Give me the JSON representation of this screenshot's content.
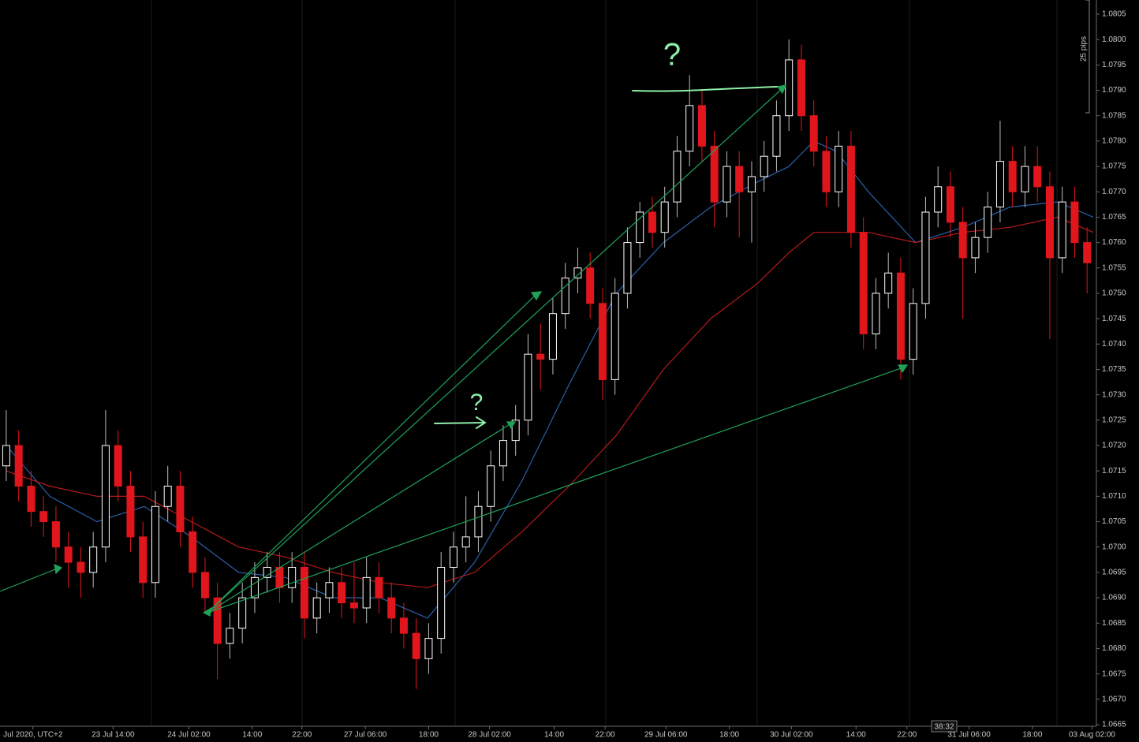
{
  "chart_data": {
    "type": "candlestick",
    "up_color": "#ffffff",
    "down_color": "#e0161c",
    "ylim": [
      1.0665,
      1.0805
    ],
    "yticks": [
      1.0665,
      {
        "value": 1.067,
        "label": "1.0670"
      },
      1.0675,
      {
        "value": 1.068,
        "label": "1.0680"
      },
      1.0685,
      {
        "value": 1.069,
        "label": "1.0690"
      },
      1.0695,
      {
        "value": 1.07,
        "label": "1.0700"
      },
      1.0705,
      {
        "value": 1.071,
        "label": "1.0710"
      },
      1.0715,
      {
        "value": 1.072,
        "label": "1.0720"
      },
      1.0725,
      {
        "value": 1.073,
        "label": "1.0730"
      },
      1.0735,
      {
        "value": 1.074,
        "label": "1.0740"
      },
      1.0745,
      {
        "value": 1.075,
        "label": "1.0750"
      },
      1.0755,
      {
        "value": 1.076,
        "label": "1.0760"
      },
      1.0765,
      {
        "value": 1.077,
        "label": "1.0770"
      },
      1.0775,
      {
        "value": 1.078,
        "label": "1.0780"
      },
      1.0785,
      {
        "value": 1.079,
        "label": "1.0790"
      },
      1.0795,
      {
        "value": 1.08,
        "label": "1.0800"
      },
      1.0805
    ],
    "xlim": [
      -0.25,
      87.75
    ],
    "xticks": [
      {
        "value": 2.15,
        "label": "Jul 2020, UTC+2"
      },
      {
        "value": 8.6,
        "label": "23 Jul 14:00"
      },
      {
        "value": 14.7,
        "label": "24 Jul 02:00"
      },
      {
        "value": 19.8,
        "label": "14:00"
      },
      {
        "value": 23.8,
        "label": "22:00"
      },
      {
        "value": 28.9,
        "label": "27 Jul 06:00"
      },
      {
        "value": 34,
        "label": "18:00"
      },
      {
        "value": 38.9,
        "label": "28 Jul 02:00"
      },
      {
        "value": 44.1,
        "label": "14:00"
      },
      {
        "value": 48.2,
        "label": "22:00"
      },
      {
        "value": 53.1,
        "label": "29 Jul 06:00"
      },
      {
        "value": 58.2,
        "label": "18:00"
      },
      {
        "value": 63.2,
        "label": "30 Jul 02:00"
      },
      {
        "value": 68.4,
        "label": "14:00"
      },
      {
        "value": 72.5,
        "label": "22:00"
      },
      {
        "value": 77.5,
        "label": "31 Jul 06:00"
      },
      {
        "value": 82.6,
        "label": "18:00"
      },
      {
        "value": 87.4,
        "label": "03 Aug 02:00"
      }
    ],
    "ohlc": [
      [
        1.0716,
        1.0727,
        1.0713,
        1.072
      ],
      [
        1.072,
        1.0723,
        1.0709,
        1.0712
      ],
      [
        1.0712,
        1.0715,
        1.0704,
        1.0707
      ],
      [
        1.0707,
        1.071,
        1.0702,
        1.0705
      ],
      [
        1.0705,
        1.0708,
        1.0697,
        1.07
      ],
      [
        1.07,
        1.0703,
        1.0692,
        1.0697
      ],
      [
        1.0697,
        1.07,
        1.069,
        1.0695
      ],
      [
        1.0695,
        1.0703,
        1.0692,
        1.07
      ],
      [
        1.07,
        1.0727,
        1.0697,
        1.072
      ],
      [
        1.072,
        1.0723,
        1.0709,
        1.0712
      ],
      [
        1.0712,
        1.0715,
        1.0699,
        1.0702
      ],
      [
        1.0702,
        1.0705,
        1.069,
        1.0693
      ],
      [
        1.0693,
        1.0711,
        1.069,
        1.0708
      ],
      [
        1.0708,
        1.0716,
        1.0705,
        1.0712
      ],
      [
        1.0712,
        1.0715,
        1.07,
        1.0703
      ],
      [
        1.0703,
        1.0706,
        1.0692,
        1.0695
      ],
      [
        1.0695,
        1.0698,
        1.0687,
        1.069
      ],
      [
        1.069,
        1.0693,
        1.0674,
        1.0681
      ],
      [
        1.0681,
        1.0687,
        1.0678,
        1.0684
      ],
      [
        1.0684,
        1.0693,
        1.0681,
        1.069
      ],
      [
        1.069,
        1.0697,
        1.0687,
        1.0694
      ],
      [
        1.0694,
        1.0699,
        1.0691,
        1.0696
      ],
      [
        1.0696,
        1.0699,
        1.0689,
        1.0692
      ],
      [
        1.0692,
        1.0699,
        1.0689,
        1.0696
      ],
      [
        1.0696,
        1.0699,
        1.0682,
        1.0686
      ],
      [
        1.0686,
        1.0693,
        1.0683,
        1.069
      ],
      [
        1.069,
        1.0696,
        1.0687,
        1.0693
      ],
      [
        1.0693,
        1.0696,
        1.0686,
        1.0689
      ],
      [
        1.0689,
        1.0697,
        1.0685,
        1.0688
      ],
      [
        1.0688,
        1.0698,
        1.0685,
        1.0694
      ],
      [
        1.0694,
        1.0697,
        1.0687,
        1.069
      ],
      [
        1.069,
        1.0693,
        1.0683,
        1.0686
      ],
      [
        1.0686,
        1.0689,
        1.068,
        1.0683
      ],
      [
        1.0683,
        1.0686,
        1.0672,
        1.0678
      ],
      [
        1.0678,
        1.0685,
        1.0675,
        1.0682
      ],
      [
        1.0682,
        1.0699,
        1.0679,
        1.0696
      ],
      [
        1.0696,
        1.0703,
        1.0693,
        1.07
      ],
      [
        1.07,
        1.071,
        1.0697,
        1.0702
      ],
      [
        1.0702,
        1.0711,
        1.0699,
        1.0708
      ],
      [
        1.0708,
        1.0719,
        1.0705,
        1.0716
      ],
      [
        1.0716,
        1.0724,
        1.0713,
        1.0721
      ],
      [
        1.0721,
        1.0728,
        1.0718,
        1.0725
      ],
      [
        1.0725,
        1.0742,
        1.0722,
        1.0738
      ],
      [
        1.0738,
        1.0744,
        1.0731,
        1.0737
      ],
      [
        1.0737,
        1.0749,
        1.0734,
        1.0746
      ],
      [
        1.0746,
        1.0756,
        1.0743,
        1.0753
      ],
      [
        1.0753,
        1.0759,
        1.075,
        1.0755
      ],
      [
        1.0755,
        1.0758,
        1.0745,
        1.0748
      ],
      [
        1.0748,
        1.0751,
        1.0729,
        1.0733
      ],
      [
        1.0733,
        1.0753,
        1.073,
        1.075
      ],
      [
        1.075,
        1.0763,
        1.0747,
        1.076
      ],
      [
        1.076,
        1.0768,
        1.0757,
        1.0766
      ],
      [
        1.0766,
        1.0769,
        1.0759,
        1.0762
      ],
      [
        1.0762,
        1.0771,
        1.0759,
        1.0768
      ],
      [
        1.0768,
        1.0781,
        1.0765,
        1.0778
      ],
      [
        1.0778,
        1.0793,
        1.0775,
        1.0787
      ],
      [
        1.0787,
        1.079,
        1.0776,
        1.0779
      ],
      [
        1.0779,
        1.0782,
        1.0763,
        1.0768
      ],
      [
        1.0768,
        1.0778,
        1.0765,
        1.0775
      ],
      [
        1.0775,
        1.0778,
        1.0761,
        1.077
      ],
      [
        1.077,
        1.0776,
        1.076,
        1.0773
      ],
      [
        1.0773,
        1.078,
        1.077,
        1.0777
      ],
      [
        1.0777,
        1.0788,
        1.0774,
        1.0785
      ],
      [
        1.0785,
        1.08,
        1.0782,
        1.0796
      ],
      [
        1.0796,
        1.0799,
        1.0782,
        1.0785
      ],
      [
        1.0785,
        1.0788,
        1.0775,
        1.0778
      ],
      [
        1.0778,
        1.0781,
        1.0767,
        1.077
      ],
      [
        1.077,
        1.0782,
        1.0767,
        1.0779
      ],
      [
        1.0779,
        1.0782,
        1.0759,
        1.0762
      ],
      [
        1.0762,
        1.0765,
        1.0739,
        1.0742
      ],
      [
        1.0742,
        1.0753,
        1.0739,
        1.075
      ],
      [
        1.075,
        1.0758,
        1.0747,
        1.0754
      ],
      [
        1.0754,
        1.0757,
        1.0733,
        1.0737
      ],
      [
        1.0737,
        1.0751,
        1.0734,
        1.0748
      ],
      [
        1.0748,
        1.0769,
        1.0745,
        1.0766
      ],
      [
        1.0766,
        1.0775,
        1.0763,
        1.0771
      ],
      [
        1.0771,
        1.0774,
        1.0761,
        1.0764
      ],
      [
        1.0764,
        1.0767,
        1.0745,
        1.0757
      ],
      [
        1.0757,
        1.0764,
        1.0754,
        1.0761
      ],
      [
        1.0761,
        1.077,
        1.0758,
        1.0767
      ],
      [
        1.0767,
        1.0784,
        1.0764,
        1.0776
      ],
      [
        1.0776,
        1.0779,
        1.0767,
        1.077
      ],
      [
        1.077,
        1.0779,
        1.0767,
        1.0775
      ],
      [
        1.0775,
        1.0779,
        1.0768,
        1.0771
      ],
      [
        1.0771,
        1.0774,
        1.0741,
        1.0757
      ],
      [
        1.0757,
        1.0771,
        1.0754,
        1.0768
      ],
      [
        1.0768,
        1.0771,
        1.0757,
        1.076
      ],
      [
        1.076,
        1.0763,
        1.075,
        1.0756
      ]
    ],
    "series": [
      {
        "color": "#2a5fa8",
        "x": [
          0,
          3.5,
          7.3,
          11.1,
          14.9,
          18.7,
          22.5,
          26.3,
          30.1,
          33.9,
          37.7,
          41.5,
          45.3,
          49.1,
          52.9,
          56.7,
          60.5,
          63,
          65,
          66.8,
          69.4,
          73.2,
          77,
          80.8,
          84.6,
          87.5
        ],
        "values": [
          1.072,
          1.071,
          1.0705,
          1.0708,
          1.0702,
          1.0695,
          1.0694,
          1.069,
          1.069,
          1.0686,
          1.0697,
          1.0713,
          1.0732,
          1.075,
          1.076,
          1.0767,
          1.0772,
          1.0775,
          1.078,
          1.0778,
          1.077,
          1.076,
          1.0763,
          1.0767,
          1.0768,
          1.0765
        ]
      },
      {
        "color": "#b51a1a",
        "x": [
          0,
          3.5,
          7.3,
          11.1,
          14.9,
          18.7,
          22.5,
          26.3,
          30.1,
          33.9,
          37.7,
          41.5,
          45.3,
          49.1,
          52.9,
          56.7,
          60.5,
          63,
          65,
          66.8,
          69.4,
          73.2,
          77,
          80.8,
          84.6,
          87.5
        ],
        "values": [
          1.0715,
          1.0712,
          1.071,
          1.071,
          1.0705,
          1.07,
          1.0698,
          1.0695,
          1.0693,
          1.0692,
          1.0695,
          1.0703,
          1.0712,
          1.0722,
          1.0735,
          1.0745,
          1.0752,
          1.0758,
          1.0762,
          1.0762,
          1.0762,
          1.076,
          1.0762,
          1.0763,
          1.0765,
          1.0762
        ]
      }
    ],
    "annotations": [
      "?",
      "?"
    ],
    "scale_label": "25 pips",
    "timer": "38:32"
  }
}
